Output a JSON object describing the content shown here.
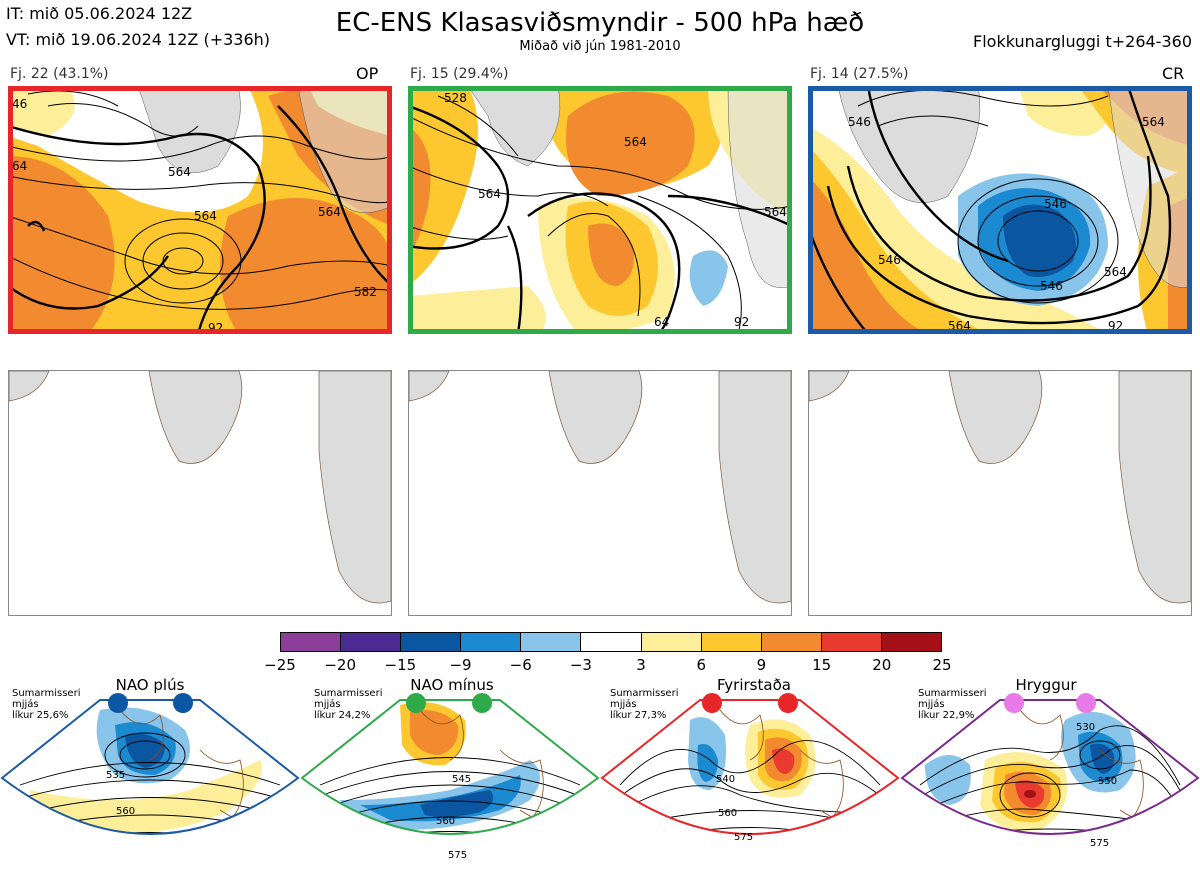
{
  "header": {
    "it_line": "IT: mið 05.06.2024 12Z",
    "vt_line": "VT: mið 19.06.2024 12Z  (+336h)",
    "title": "EC-ENS Klasasviðsmyndir - 500 hPa hæð",
    "subtitle": "Miðað við jún 1981-2010",
    "window": "Flokkunargluggi t+264-360"
  },
  "clusters": [
    {
      "label": "Fj. 22 (43.1%)",
      "tag": "OP",
      "border_color": "#e8262a",
      "contour_labels": [
        "564",
        "564",
        "564",
        "582",
        "92",
        "46",
        "64"
      ]
    },
    {
      "label": "Fj. 15 (29.4%)",
      "tag": "",
      "border_color": "#2eaa4a",
      "contour_labels": [
        "528",
        "564",
        "564",
        "564",
        "64",
        "92"
      ]
    },
    {
      "label": "Fj. 14 (27.5%)",
      "tag": "CR",
      "border_color": "#1a5aa6",
      "contour_labels": [
        "546",
        "546",
        "546",
        "564",
        "564",
        "564",
        "546",
        "92"
      ]
    }
  ],
  "colorbar": {
    "ticks": [
      "−25",
      "−20",
      "−15",
      "−9",
      "−6",
      "−3",
      "3",
      "6",
      "9",
      "15",
      "20",
      "25"
    ],
    "colors": [
      "#8b3f9a",
      "#4b2a91",
      "#0a56a0",
      "#1b8ad0",
      "#89c4ea",
      "#ffffff",
      "#fdef9a",
      "#fdc82f",
      "#f28a30",
      "#e83a2e",
      "#a51018"
    ]
  },
  "regimes": [
    {
      "name": "NAO plús",
      "note": [
        "Sumarmisseri",
        "mjjás",
        "líkur 25,6%"
      ],
      "dot_color": "#0b57a3",
      "border_color": "#1a5aa6",
      "contour_labels": [
        "535",
        "560"
      ]
    },
    {
      "name": "NAO mínus",
      "note": [
        "Sumarmisseri",
        "mjjás",
        "líkur 24,2%"
      ],
      "dot_color": "#2eaa4a",
      "border_color": "#2eaa4a",
      "contour_labels": [
        "545",
        "560",
        "575"
      ]
    },
    {
      "name": "Fyrirstaða",
      "note": [
        "Sumarmisseri",
        "mjjás",
        "líkur 27,3%"
      ],
      "dot_color": "#e8262a",
      "border_color": "#e8262a",
      "contour_labels": [
        "540",
        "560",
        "575"
      ]
    },
    {
      "name": "Hryggur",
      "note": [
        "Sumarmisseri",
        "mjjás",
        "líkur 22,9%"
      ],
      "dot_color": "#e879e8",
      "border_color": "#7a2a8a",
      "contour_labels": [
        "530",
        "550",
        "575"
      ]
    }
  ],
  "chart_data": {
    "type": "heatmap",
    "title": "EC-ENS Klasasviðsmyndir - 500 hPa hæð",
    "subtitle": "Miðað við jún 1981-2010",
    "colorbar_bounds": [
      -25,
      -20,
      -15,
      -9,
      -6,
      -3,
      3,
      6,
      9,
      15,
      20,
      25
    ],
    "clusters": [
      {
        "label": "Fj. 22 (43.1%)",
        "members": 22,
        "probability_pct": 43.1,
        "tag": "OP"
      },
      {
        "label": "Fj. 15 (29.4%)",
        "members": 15,
        "probability_pct": 29.4,
        "tag": ""
      },
      {
        "label": "Fj. 14 (27.5%)",
        "members": 14,
        "probability_pct": 27.5,
        "tag": "CR"
      }
    ],
    "regimes": [
      {
        "name": "NAO plús",
        "probability_pct": 25.6
      },
      {
        "name": "NAO mínus",
        "probability_pct": 24.2
      },
      {
        "name": "Fyrirstaða",
        "probability_pct": 27.3
      },
      {
        "name": "Hryggur",
        "probability_pct": 22.9
      }
    ]
  }
}
